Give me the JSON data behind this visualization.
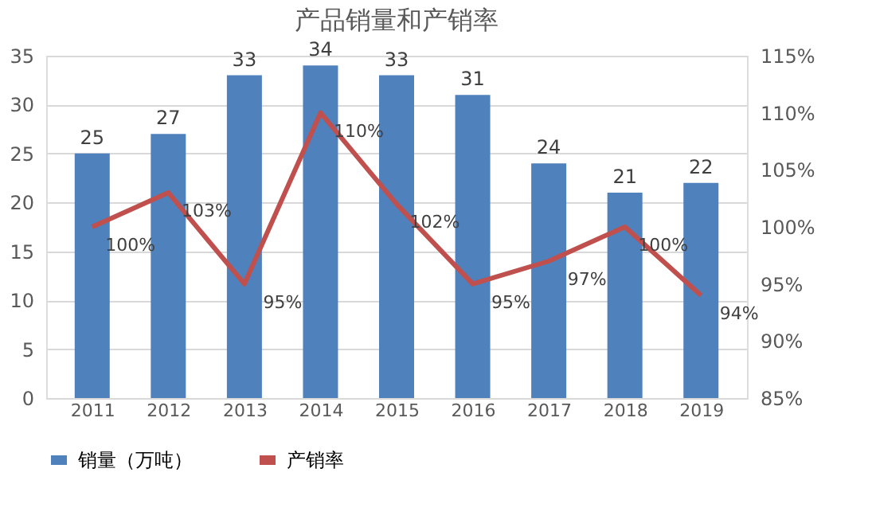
{
  "chart_data": {
    "type": "bar",
    "title": "产品销量和产销率",
    "categories": [
      "2011",
      "2012",
      "2013",
      "2014",
      "2015",
      "2016",
      "2017",
      "2018",
      "2019"
    ],
    "series": [
      {
        "name": "销量（万吨）",
        "color": "#4f81bd",
        "values": [
          25,
          27,
          33,
          34,
          33,
          31,
          24,
          21,
          22
        ],
        "value_labels": [
          "25",
          "27",
          "33",
          "34",
          "33",
          "31",
          "24",
          "21",
          "22"
        ]
      },
      {
        "name": "产销率",
        "type": "line",
        "axis": "y2",
        "color": "#c0504d",
        "values": [
          100,
          103,
          95,
          110,
          102,
          95,
          97,
          100,
          94
        ],
        "value_labels": [
          "100%",
          "103%",
          "95%",
          "110%",
          "102%",
          "95%",
          "97%",
          "100%",
          "94%"
        ]
      }
    ],
    "ylim": [
      0,
      35
    ],
    "yticks": [
      0,
      5,
      10,
      15,
      20,
      25,
      30,
      35
    ],
    "y2lim": [
      85,
      115
    ],
    "y2ticks": [
      {
        "value": 85,
        "label": "85%"
      },
      {
        "value": 90,
        "label": "90%"
      },
      {
        "value": 95,
        "label": "95%"
      },
      {
        "value": 100,
        "label": "100%"
      },
      {
        "value": 105,
        "label": "105%"
      },
      {
        "value": 110,
        "label": "110%"
      },
      {
        "value": 115,
        "label": "115%"
      }
    ],
    "grid": "y",
    "legend": "bottom",
    "marker": "none",
    "line_style": "solid"
  }
}
